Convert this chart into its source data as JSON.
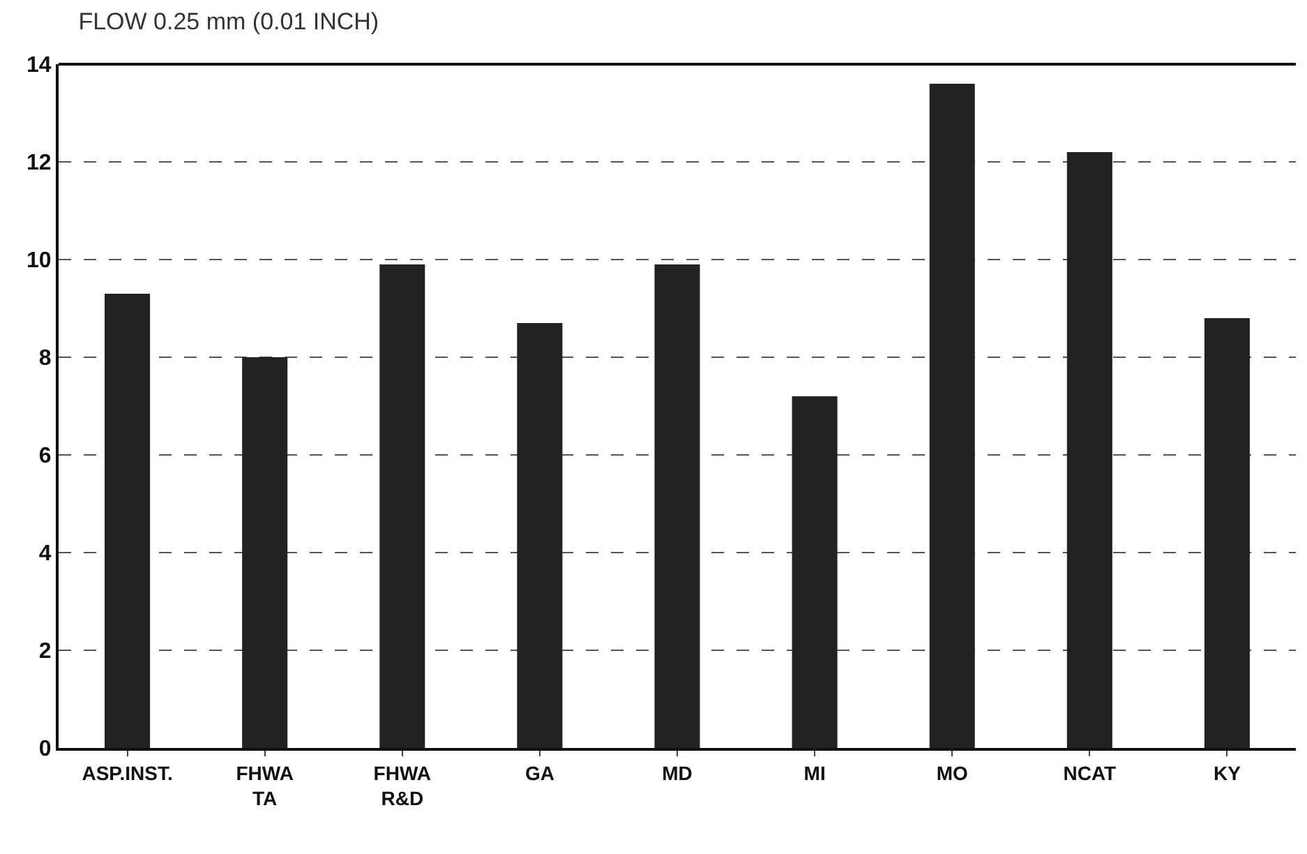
{
  "chart_data": {
    "type": "bar",
    "title": "FLOW 0.25 mm (0.01 INCH)",
    "categories": [
      "ASP.INST.",
      "FHWA\nTA",
      "FHWA\nR&D",
      "GA",
      "MD",
      "MI",
      "MO",
      "NCAT",
      "KY"
    ],
    "values": [
      9.3,
      8.0,
      9.9,
      8.7,
      9.9,
      7.2,
      13.6,
      12.2,
      8.8
    ],
    "color": "#222222",
    "ylim": [
      0,
      14
    ],
    "yticks": [
      0,
      2,
      4,
      6,
      8,
      10,
      12,
      14
    ],
    "grid": "y"
  }
}
